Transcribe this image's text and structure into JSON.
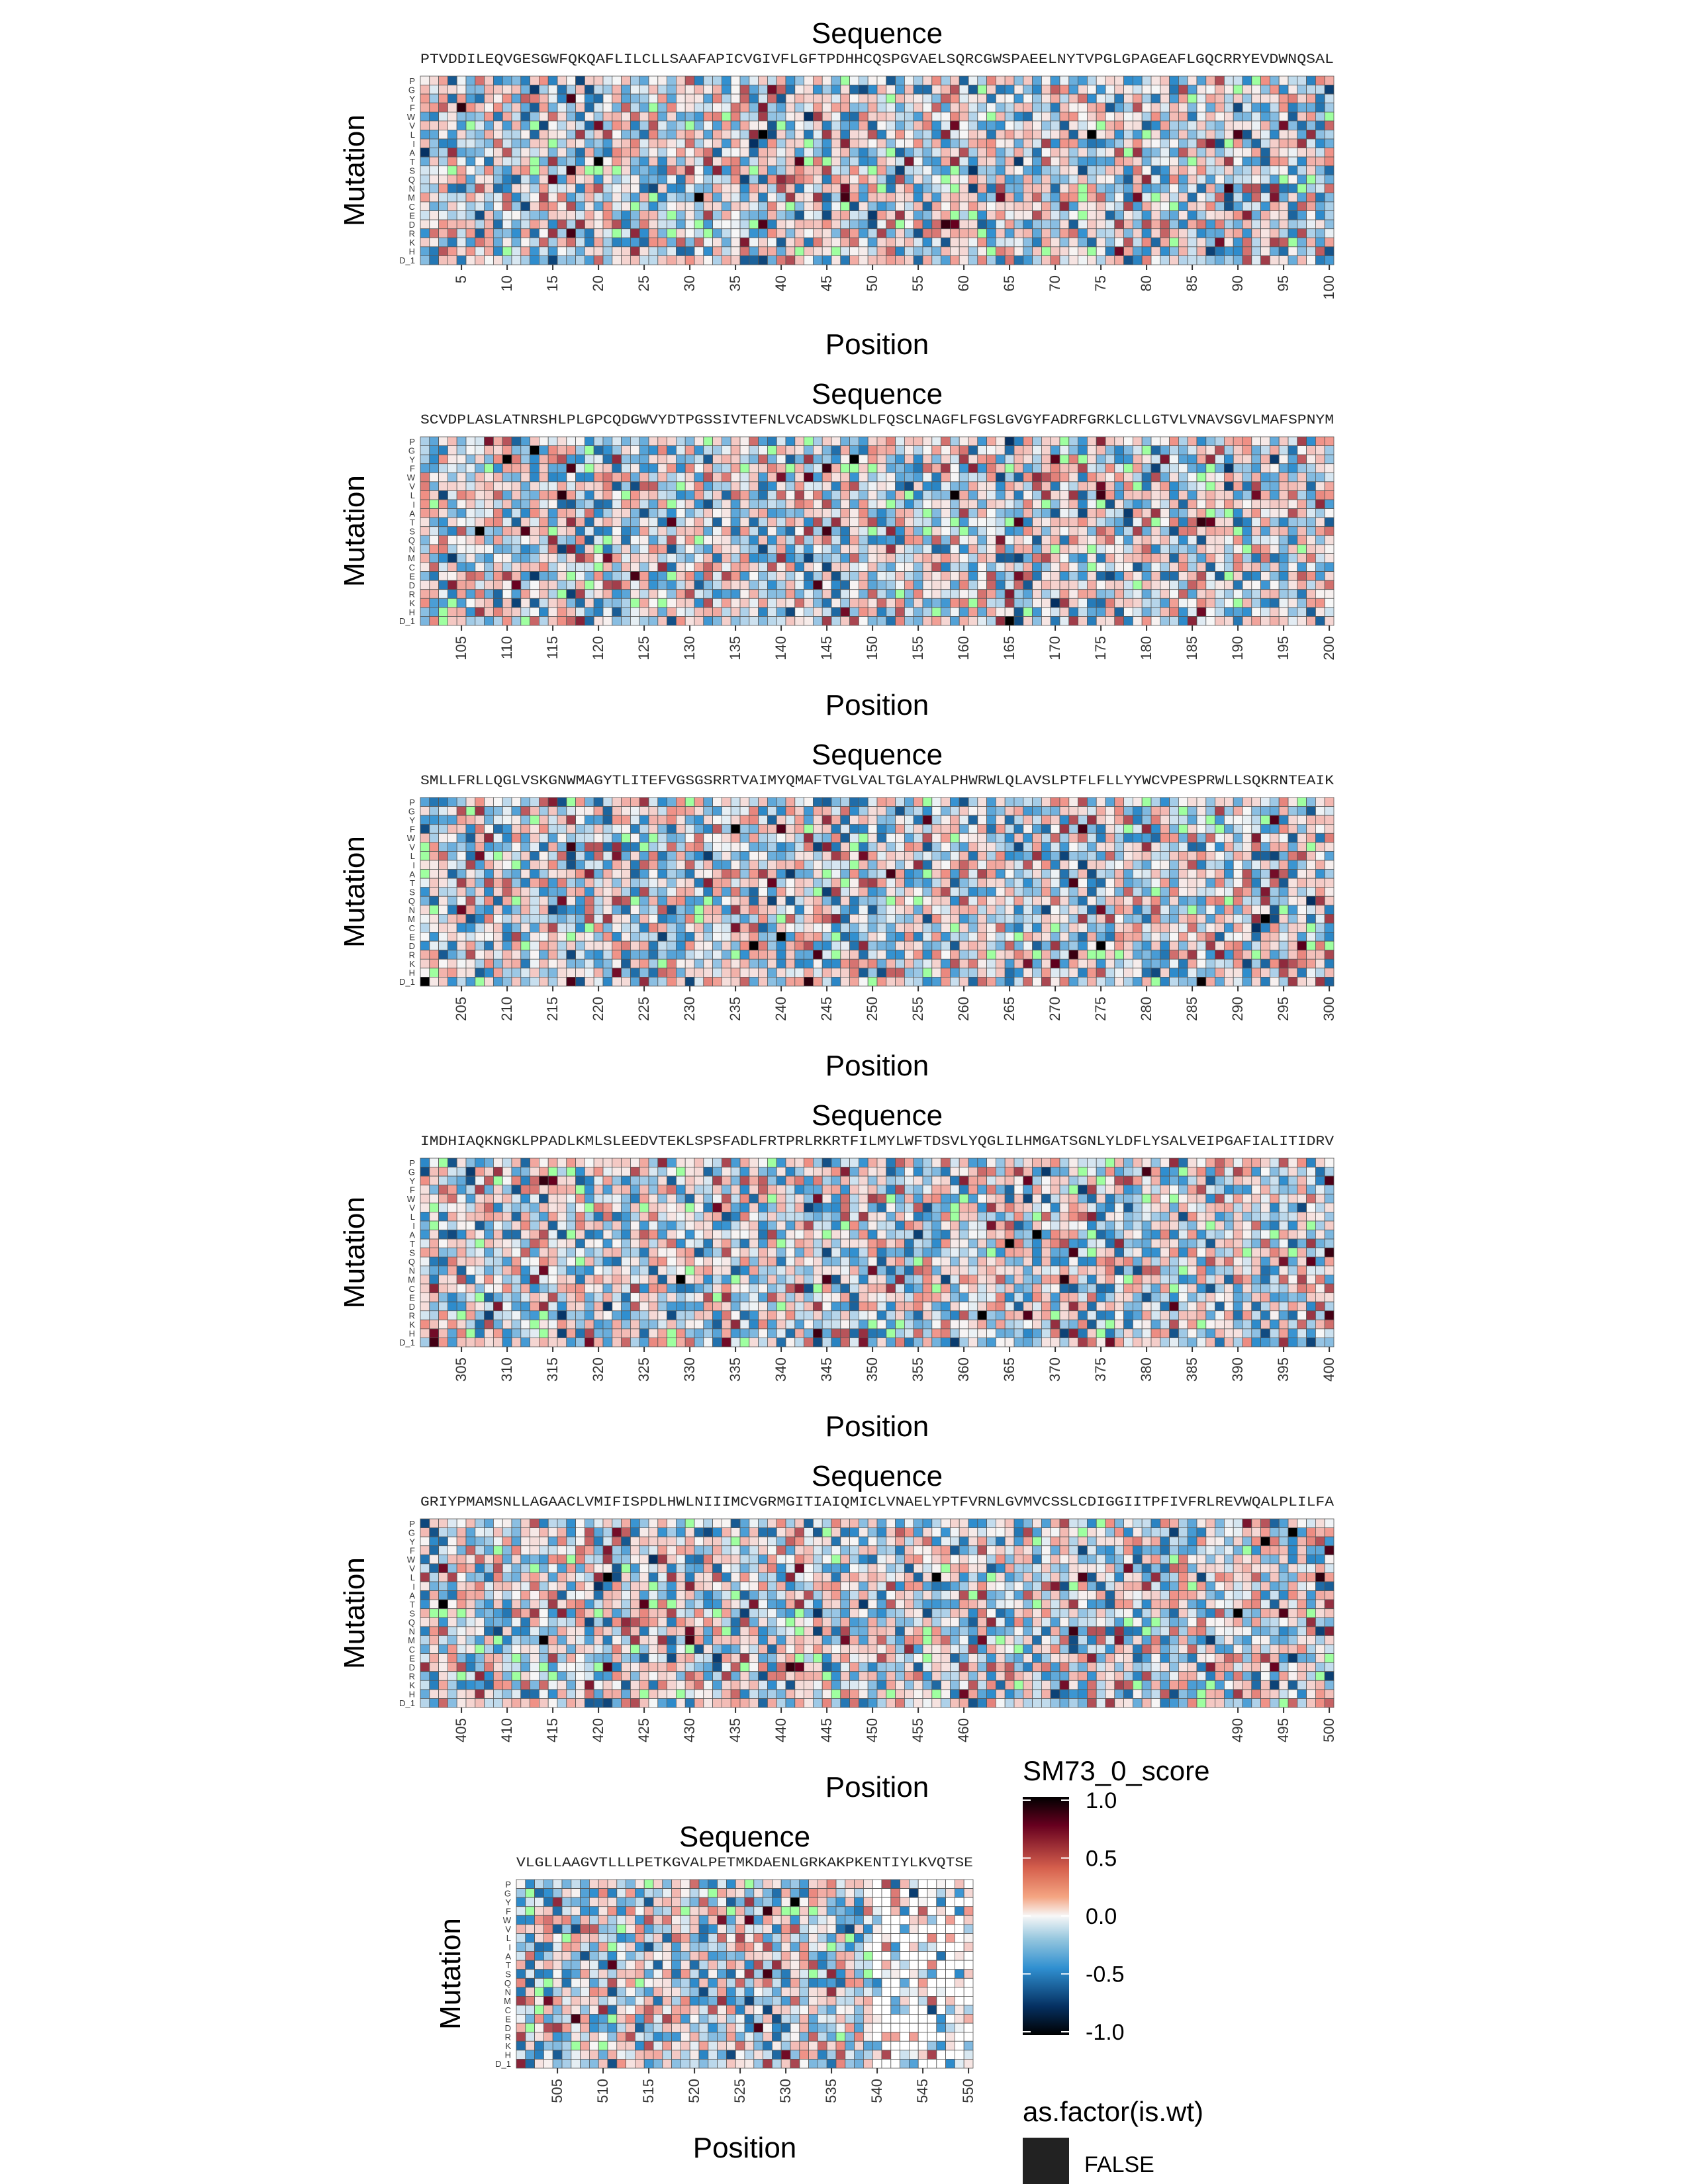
{
  "chart_data": [
    {
      "type": "heatmap",
      "title": "Sequence",
      "sequence": "PTVDDILEQVGESGWFQKQAFLILCLLSAAFAPICVGIVFLGFTPDHHCQSPGVAELSQRCGWSPAEELNYTVPGLGPAGEAFLGQCRRYEVDWNQSAL",
      "xlabel": "Position",
      "ylabel": "Mutation",
      "x_start": 1,
      "x_end": 100,
      "x_ticks": [
        5,
        10,
        15,
        20,
        25,
        30,
        35,
        40,
        45,
        50,
        55,
        60,
        65,
        70,
        75,
        80,
        85,
        90,
        95,
        100
      ]
    },
    {
      "type": "heatmap",
      "title": "Sequence",
      "sequence": "SCVDPLASLATNRSHLPLGPCQDGWVYDTPGSSIVTEFNLVCADSWKLDLFQSCLNAGFLFGSLGVGYFADRFGRKLCLLGTVLVNAVSGVLMAFSPNYM",
      "xlabel": "Position",
      "ylabel": "Mutation",
      "x_start": 101,
      "x_end": 200,
      "x_ticks": [
        105,
        110,
        115,
        120,
        125,
        130,
        135,
        140,
        145,
        150,
        155,
        160,
        165,
        170,
        175,
        180,
        185,
        190,
        195,
        200
      ]
    },
    {
      "type": "heatmap",
      "title": "Sequence",
      "sequence": "SMLLFRLLQGLVSKGNWMAGYTLITEFVGSGSRRTVAIMYQMAFTVGLVALTGLAYALPHWRWLQLAVSLPTFLFLLYYWCVPESPRWLLSQKRNTEAIK",
      "xlabel": "Position",
      "ylabel": "Mutation",
      "x_start": 201,
      "x_end": 300,
      "x_ticks": [
        205,
        210,
        215,
        220,
        225,
        230,
        235,
        240,
        245,
        250,
        255,
        260,
        265,
        270,
        275,
        280,
        285,
        290,
        295,
        300
      ]
    },
    {
      "type": "heatmap",
      "title": "Sequence",
      "sequence": "IMDHIAQKNGKLPPADLKMLSLEEDVTEKLSPSFADLFRTPRLRKRTFILMYLWFTDSVLYQGLILHMGATSGNLYLDFLYSALVEIPGAFIALITIDRV",
      "xlabel": "Position",
      "ylabel": "Mutation",
      "x_start": 301,
      "x_end": 400,
      "x_ticks": [
        305,
        310,
        315,
        320,
        325,
        330,
        335,
        340,
        345,
        350,
        355,
        360,
        365,
        370,
        375,
        380,
        385,
        390,
        395,
        400
      ]
    },
    {
      "type": "heatmap",
      "title": "Sequence",
      "sequence": "GRIYPMAMSNLLAGAACLVMIFISPDLHWLNIIIMCVGRMGITIAIQMICLVNAELYPTFVRNLGVMVCSSLCDIGGIITPFIVFRLREVWQALPLILFA",
      "xlabel": "Position",
      "ylabel": "Mutation",
      "x_start": 401,
      "x_end": 500,
      "x_ticks": [
        405,
        410,
        415,
        420,
        425,
        430,
        435,
        440,
        445,
        450,
        455,
        460,
        490,
        495,
        500
      ]
    },
    {
      "type": "heatmap",
      "title": "Sequence",
      "sequence": "VLGLLAAGVTLLLPETKGVALPETMKDAENLGRKAKPKENTIYLKVQTSE",
      "xlabel": "Position",
      "ylabel": "Mutation",
      "x_start": 501,
      "x_end": 550,
      "x_ticks": [
        505,
        510,
        515,
        520,
        525,
        530,
        535,
        540,
        545,
        550
      ]
    }
  ],
  "mutation_labels": [
    "P",
    "G",
    "Y",
    "F",
    "W",
    "V",
    "L",
    "I",
    "A",
    "T",
    "S",
    "Q",
    "N",
    "M",
    "C",
    "E",
    "D",
    "R",
    "K",
    "H",
    "D_1"
  ],
  "color_scale": {
    "low": "#053061",
    "mid_low": "#2f8fd0",
    "mid": "#f7f7f7",
    "mid_high": "#f08f84",
    "high": "#67001f",
    "max": "#000000",
    "na": "#9fffa0"
  },
  "legend": {
    "score_title": "SM73_0_score",
    "score_ticks": [
      "1.0",
      "0.5",
      "0.0",
      "-0.5",
      "-1.0"
    ],
    "wt_title": "as.factor(is.wt)",
    "wt_label": "FALSE",
    "wt_color": "#222222"
  }
}
